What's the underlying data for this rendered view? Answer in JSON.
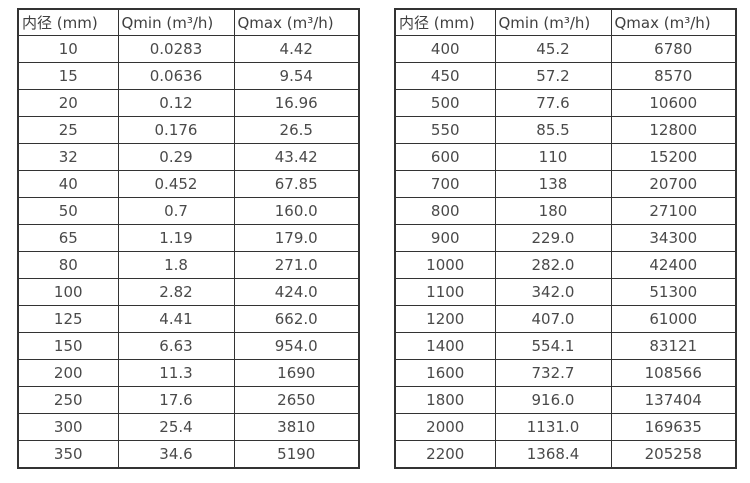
{
  "page": {
    "background": "#ffffff",
    "border_color": "#333333",
    "text_color": "#4a4a4a"
  },
  "tables": [
    {
      "name": "small-diameters",
      "headers": [
        "内径 (mm)",
        "Qmin (m³/h)",
        "Qmax (m³/h)"
      ],
      "rows": [
        [
          "10",
          "0.0283",
          "4.42"
        ],
        [
          "15",
          "0.0636",
          "9.54"
        ],
        [
          "20",
          "0.12",
          "16.96"
        ],
        [
          "25",
          "0.176",
          "26.5"
        ],
        [
          "32",
          "0.29",
          "43.42"
        ],
        [
          "40",
          "0.452",
          "67.85"
        ],
        [
          "50",
          "0.7",
          "160.0"
        ],
        [
          "65",
          "1.19",
          "179.0"
        ],
        [
          "80",
          "1.8",
          "271.0"
        ],
        [
          "100",
          "2.82",
          "424.0"
        ],
        [
          "125",
          "4.41",
          "662.0"
        ],
        [
          "150",
          "6.63",
          "954.0"
        ],
        [
          "200",
          "11.3",
          "1690"
        ],
        [
          "250",
          "17.6",
          "2650"
        ],
        [
          "300",
          "25.4",
          "3810"
        ],
        [
          "350",
          "34.6",
          "5190"
        ]
      ]
    },
    {
      "name": "large-diameters",
      "headers": [
        "内径 (mm)",
        "Qmin (m³/h)",
        "Qmax (m³/h)"
      ],
      "rows": [
        [
          "400",
          "45.2",
          "6780"
        ],
        [
          "450",
          "57.2",
          "8570"
        ],
        [
          "500",
          "77.6",
          "10600"
        ],
        [
          "550",
          "85.5",
          "12800"
        ],
        [
          "600",
          "110",
          "15200"
        ],
        [
          "700",
          "138",
          "20700"
        ],
        [
          "800",
          "180",
          "27100"
        ],
        [
          "900",
          "229.0",
          "34300"
        ],
        [
          "1000",
          "282.0",
          "42400"
        ],
        [
          "1100",
          "342.0",
          "51300"
        ],
        [
          "1200",
          "407.0",
          "61000"
        ],
        [
          "1400",
          "554.1",
          "83121"
        ],
        [
          "1600",
          "732.7",
          "108566"
        ],
        [
          "1800",
          "916.0",
          "137404"
        ],
        [
          "2000",
          "1131.0",
          "169635"
        ],
        [
          "2200",
          "1368.4",
          "205258"
        ]
      ]
    }
  ]
}
